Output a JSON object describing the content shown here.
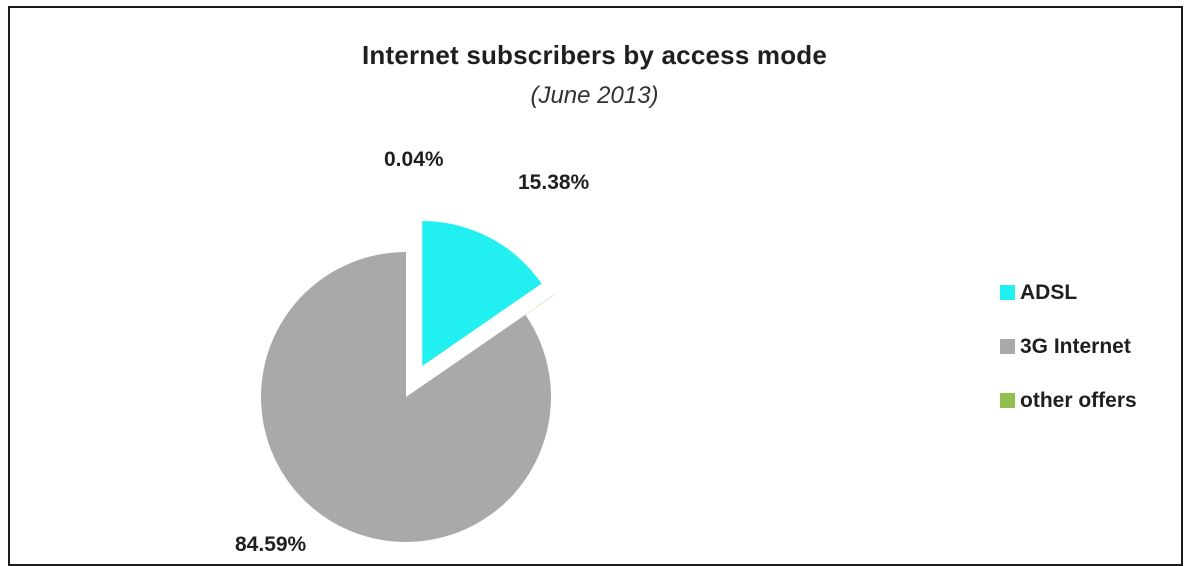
{
  "chart_data": {
    "type": "pie",
    "title": "Internet subscribers by access mode",
    "subtitle": "(June 2013)",
    "unit": "%",
    "slices": [
      {
        "name": "ADSL",
        "value": 15.38,
        "label": "15.38%",
        "color": "#22F0F0",
        "exploded": true
      },
      {
        "name": "3G Internet",
        "value": 84.59,
        "label": "84.59%",
        "color": "#A9A9A9",
        "exploded": false
      },
      {
        "name": "other offers",
        "value": 0.04,
        "label": "0.04%",
        "color": "#92C050",
        "exploded": true
      }
    ],
    "legend": {
      "position": "right"
    }
  }
}
